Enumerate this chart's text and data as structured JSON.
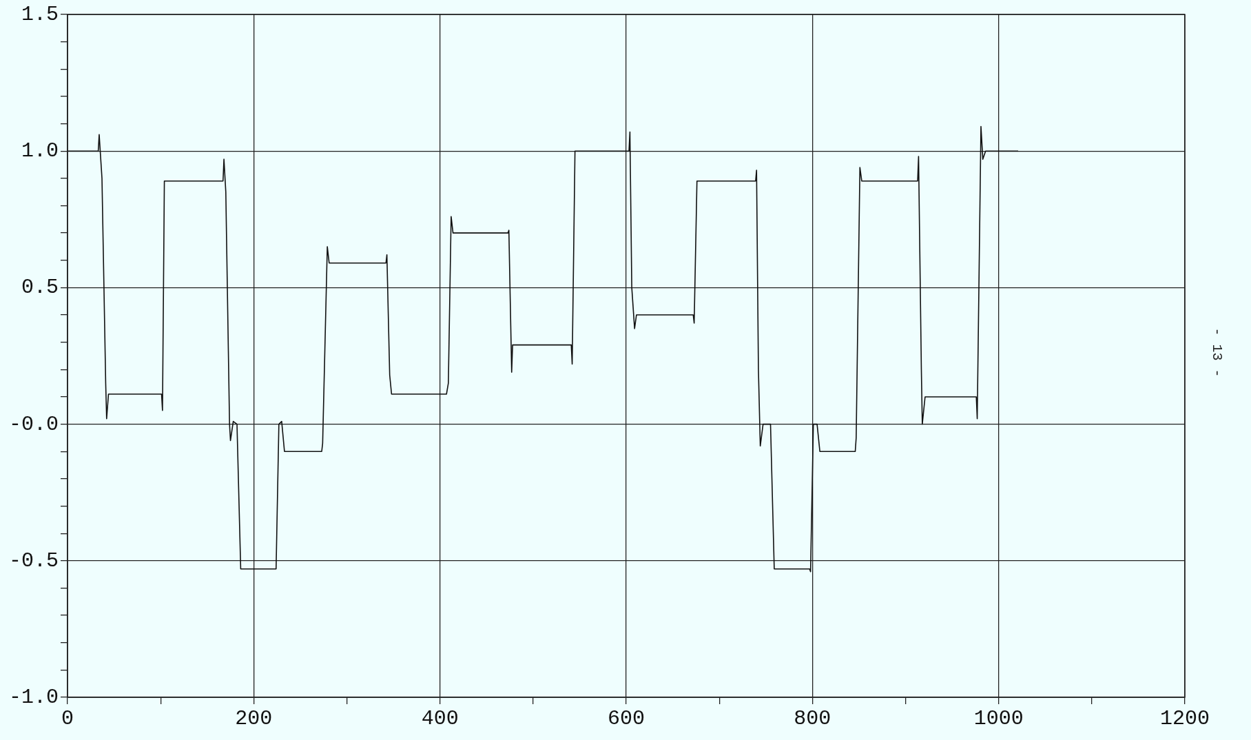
{
  "chart_data": {
    "type": "line",
    "x": [
      0,
      33,
      34,
      37,
      41,
      42,
      44,
      101,
      102,
      104,
      167,
      168,
      170,
      174,
      175,
      178,
      182,
      186,
      224,
      227,
      230,
      233,
      273,
      274,
      279,
      281,
      342,
      343,
      346,
      348,
      407,
      409,
      412,
      414,
      473,
      474,
      477,
      478,
      541,
      542,
      545,
      603,
      604,
      606,
      609,
      611,
      672,
      673,
      676,
      739,
      740,
      742,
      744,
      747,
      755,
      759,
      797,
      798,
      801,
      805,
      808,
      846,
      847,
      851,
      853,
      913,
      914,
      917,
      918,
      921,
      976,
      977,
      981,
      983,
      986,
      1021
    ],
    "series": [
      {
        "color": "#111111",
        "values": [
          1.0,
          1.0,
          1.06,
          0.9,
          0.15,
          0.02,
          0.11,
          0.11,
          0.05,
          0.89,
          0.89,
          0.97,
          0.85,
          0.0,
          -0.06,
          0.01,
          0.0,
          -0.53,
          -0.53,
          0.0,
          0.01,
          -0.1,
          -0.1,
          -0.07,
          0.65,
          0.59,
          0.59,
          0.62,
          0.18,
          0.11,
          0.11,
          0.15,
          0.76,
          0.7,
          0.7,
          0.71,
          0.19,
          0.29,
          0.29,
          0.22,
          1.0,
          1.0,
          1.07,
          0.5,
          0.35,
          0.4,
          0.4,
          0.37,
          0.89,
          0.89,
          0.93,
          0.2,
          -0.08,
          0.0,
          0.0,
          -0.53,
          -0.53,
          -0.54,
          0.0,
          0.0,
          -0.1,
          -0.1,
          -0.05,
          0.94,
          0.89,
          0.89,
          0.98,
          0.2,
          0.0,
          0.1,
          0.1,
          0.02,
          1.09,
          0.97,
          1.0,
          1.0
        ]
      }
    ],
    "xlim": [
      0,
      1200
    ],
    "xticks": [
      0,
      {
        "value": 100,
        "label": null
      },
      200,
      {
        "value": 300,
        "label": null
      },
      400,
      {
        "value": 500,
        "label": null
      },
      600,
      {
        "value": 700,
        "label": null
      },
      800,
      {
        "value": 900,
        "label": null
      },
      1000,
      {
        "value": 1100,
        "label": null
      },
      1200
    ],
    "ylim": [
      -1,
      1.5
    ],
    "yticks": [
      {
        "value": -1,
        "label": "-1.0"
      },
      {
        "value": -0.9,
        "label": null
      },
      {
        "value": -0.8,
        "label": null
      },
      {
        "value": -0.7,
        "label": null
      },
      {
        "value": -0.6,
        "label": null
      },
      {
        "value": -0.5,
        "label": "-0.5"
      },
      {
        "value": -0.4,
        "label": null
      },
      {
        "value": -0.3,
        "label": null
      },
      {
        "value": -0.2,
        "label": null
      },
      {
        "value": -0.1,
        "label": null
      },
      {
        "value": 0,
        "label": "-0.0"
      },
      {
        "value": 0.1,
        "label": null
      },
      {
        "value": 0.2,
        "label": null
      },
      {
        "value": 0.3,
        "label": null
      },
      {
        "value": 0.4,
        "label": null
      },
      {
        "value": 0.5,
        "label": "0.5"
      },
      {
        "value": 0.6,
        "label": null
      },
      {
        "value": 0.7,
        "label": null
      },
      {
        "value": 0.8,
        "label": null
      },
      {
        "value": 0.9,
        "label": null
      },
      {
        "value": 1,
        "label": "1.0"
      },
      {
        "value": 1.1,
        "label": null
      },
      {
        "value": 1.2,
        "label": null
      },
      {
        "value": 1.3,
        "label": null
      },
      {
        "value": 1.4,
        "label": null
      },
      {
        "value": 1.5,
        "label": "1.5"
      }
    ],
    "grid": true,
    "marker": "none",
    "annotations": [
      "- 13 -"
    ]
  }
}
